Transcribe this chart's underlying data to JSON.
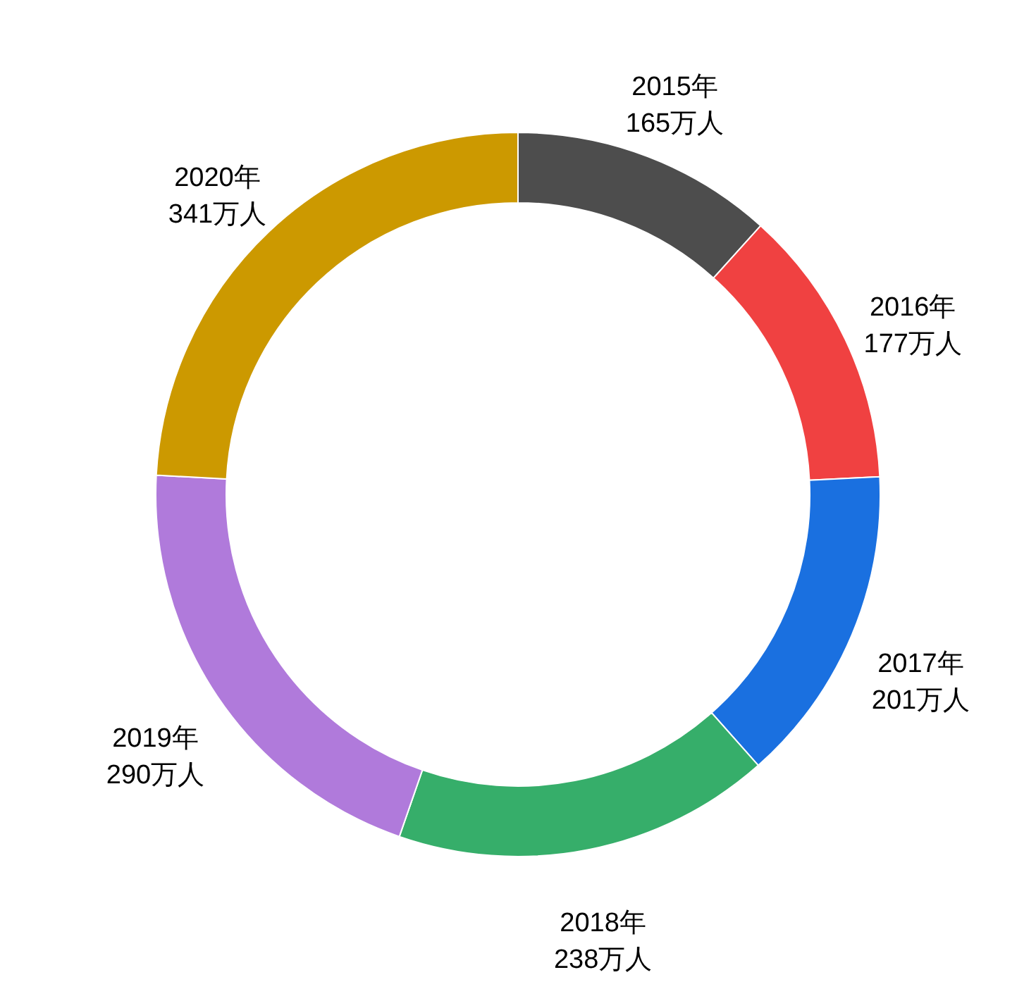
{
  "chart_data": {
    "type": "donut",
    "categories": [
      "2015年",
      "2016年",
      "2017年",
      "2018年",
      "2019年",
      "2020年"
    ],
    "values": [
      165,
      177,
      201,
      238,
      290,
      341
    ],
    "value_labels": [
      "165万人",
      "177万人",
      "201万人",
      "238万人",
      "290万人",
      "341万人"
    ],
    "colors": [
      "#4d4d4d",
      "#f04141",
      "#1a70e0",
      "#36ae6a",
      "#b07adb",
      "#cc9900"
    ]
  }
}
